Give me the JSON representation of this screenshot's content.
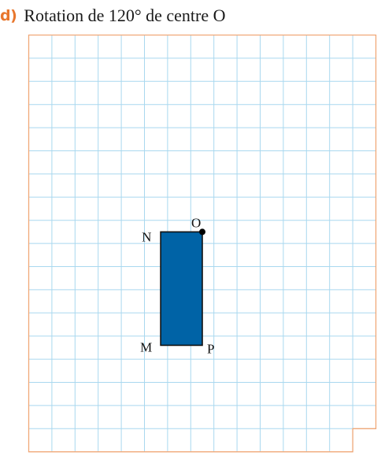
{
  "exercise": {
    "letter": "d)",
    "title": "Rotation de 120° de centre O"
  },
  "colors": {
    "accent": "#e8772e",
    "grid_line": "#a9d8ef",
    "grid_border": "#f0a878",
    "shape_fill": "#0063a6",
    "shape_stroke": "#111111"
  },
  "grid": {
    "columns": 15,
    "rows": 18,
    "notch": {
      "columns": 1,
      "rows": 1,
      "corner": "bottom-right"
    }
  },
  "shape": {
    "name": "rectangle",
    "vertices": [
      "N",
      "O",
      "P",
      "M"
    ]
  },
  "points": [
    {
      "id": "O",
      "label": "O",
      "col": 7.5,
      "row": 8.5,
      "marked": true
    },
    {
      "id": "N",
      "label": "N",
      "col": 5.7,
      "row": 8.5,
      "marked": false
    },
    {
      "id": "M",
      "label": "M",
      "col": 5.7,
      "row": 13.4,
      "marked": false
    },
    {
      "id": "P",
      "label": "P",
      "col": 7.5,
      "row": 13.4,
      "marked": false
    }
  ]
}
